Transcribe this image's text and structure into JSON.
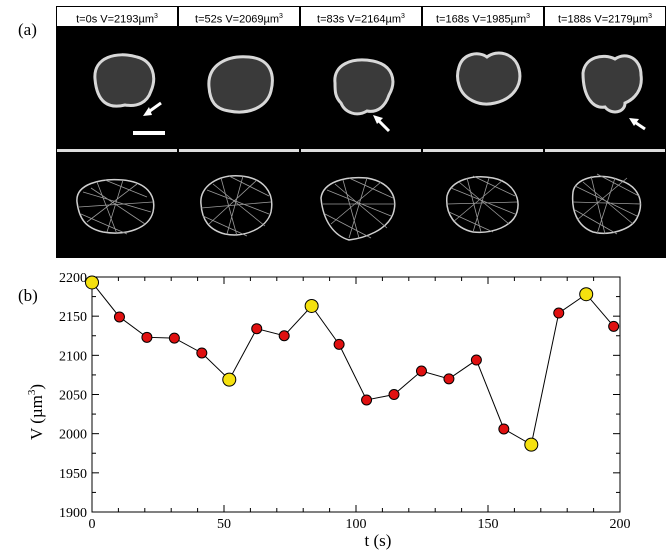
{
  "panel_a_label": "(a)",
  "panel_b_label": "(b)",
  "snapshots": [
    {
      "t": "t=0s",
      "v": "V=2193µm",
      "exp": "3",
      "arrow": true
    },
    {
      "t": "t=52s",
      "v": "V=2069µm",
      "exp": "3",
      "arrow": false
    },
    {
      "t": "t=83s",
      "v": "V=2164µm",
      "exp": "3",
      "arrow": true
    },
    {
      "t": "t=168s",
      "v": "V=1985µm",
      "exp": "3",
      "arrow": false
    },
    {
      "t": "t=188s",
      "v": "V=2179µm",
      "exp": "3",
      "arrow": true
    }
  ],
  "chart_data": {
    "type": "scatter",
    "xlabel": "t (s)",
    "ylabel": "V (µm",
    "ylabel_exp": "3",
    "ylabel_close": ")",
    "xlim": [
      0,
      200
    ],
    "ylim": [
      1900,
      2200
    ],
    "xticks": [
      0,
      50,
      100,
      150,
      200
    ],
    "yticks": [
      1900,
      1950,
      2000,
      2050,
      2100,
      2150,
      2200
    ],
    "grid": false,
    "series": [
      {
        "style": "line-with-markers",
        "color": "#000000",
        "x": [
          0,
          10.4,
          20.8,
          31.2,
          41.6,
          52,
          62.4,
          72.8,
          83.2,
          93.6,
          104,
          114.4,
          124.8,
          135.2,
          145.6,
          156,
          166.4,
          176.8,
          187.2,
          197.6
        ],
        "y": [
          2193,
          2149,
          2123,
          2122,
          2103,
          2069,
          2134,
          2125,
          2163,
          2114,
          2043,
          2050,
          2080,
          2070,
          2094,
          2006,
          1986,
          2154,
          2178,
          2137
        ]
      }
    ],
    "highlighted_indices": [
      0,
      5,
      8,
      16,
      18
    ],
    "marker_color": "#e01010",
    "highlight_color": "#f5e10f"
  }
}
